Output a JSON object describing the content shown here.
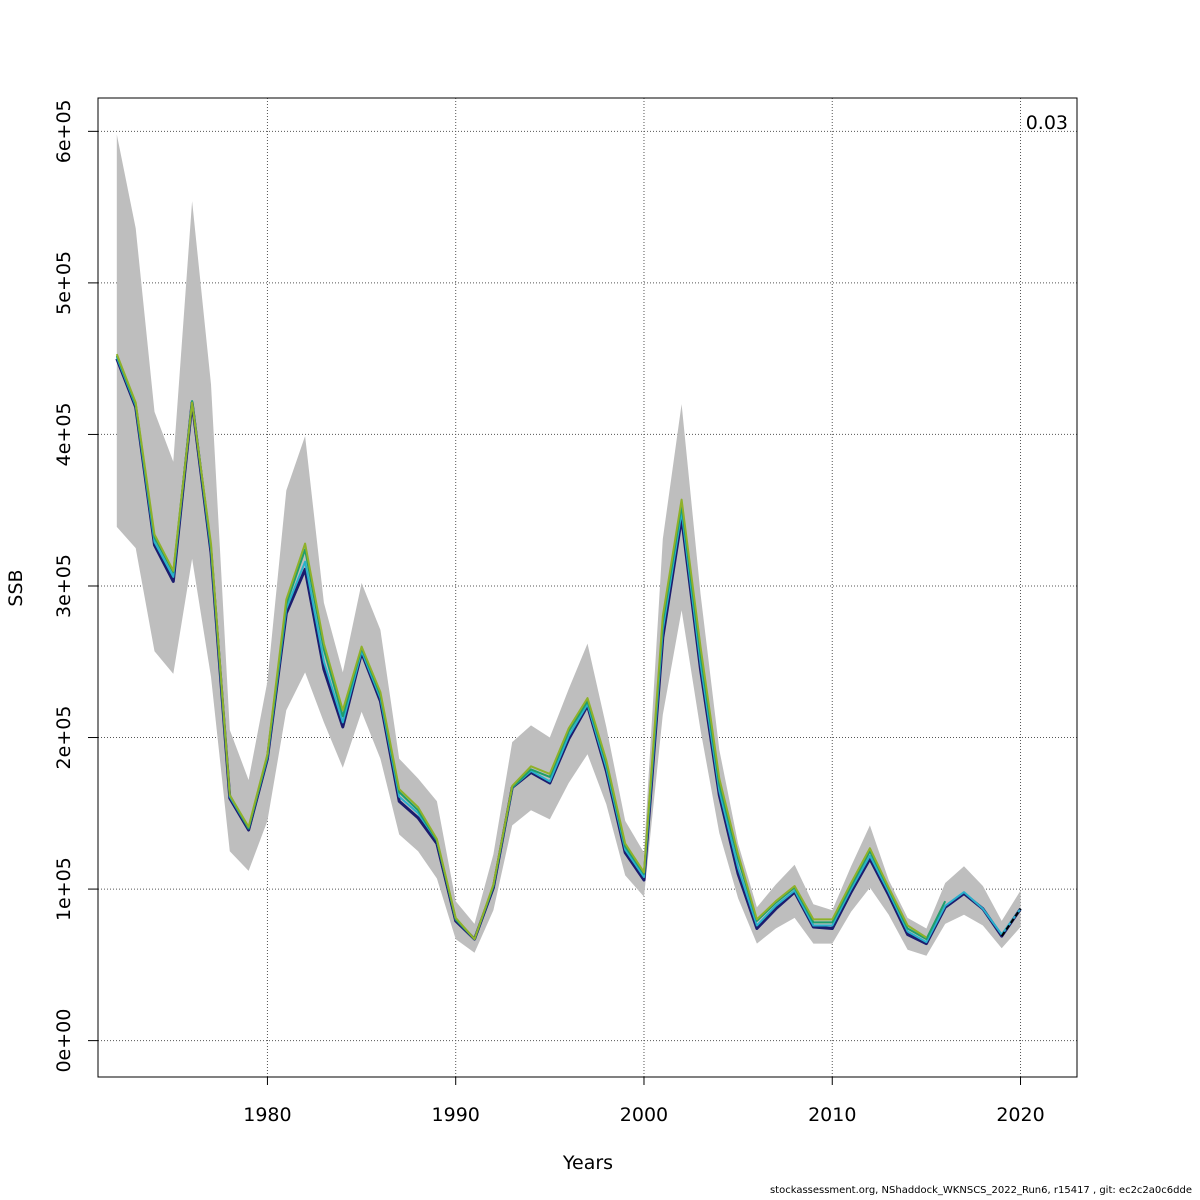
{
  "chart_data": {
    "type": "line",
    "title": "",
    "xlabel": "Years",
    "ylabel": "SSB",
    "xlim": [
      1971,
      2023
    ],
    "ylim": [
      -24000,
      622000
    ],
    "grid": true,
    "annotation": "0.03",
    "x_ticks": [
      1980,
      1990,
      2000,
      2010,
      2020
    ],
    "x_tick_labels": [
      "1980",
      "1990",
      "2000",
      "2010",
      "2020"
    ],
    "y_ticks": [
      0,
      100000,
      200000,
      300000,
      400000,
      500000,
      600000
    ],
    "y_tick_labels": [
      "0e+00",
      "1e+05",
      "2e+05",
      "3e+05",
      "4e+05",
      "5e+05",
      "6e+05"
    ],
    "band": {
      "x": [
        1972,
        1973,
        1974,
        1975,
        1976,
        1977,
        1978,
        1979,
        1980,
        1981,
        1982,
        1983,
        1984,
        1985,
        1986,
        1987,
        1988,
        1989,
        1990,
        1991,
        1992,
        1993,
        1994,
        1995,
        1996,
        1997,
        1998,
        1999,
        2000,
        2001,
        2002,
        2003,
        2004,
        2005,
        2006,
        2007,
        2008,
        2009,
        2010,
        2011,
        2012,
        2013,
        2014,
        2015,
        2016,
        2017,
        2018,
        2019,
        2020
      ],
      "lower": [
        339000,
        325000,
        257000,
        242000,
        318000,
        240000,
        125000,
        112000,
        145000,
        218000,
        243000,
        210000,
        180000,
        217000,
        186000,
        136000,
        125000,
        107000,
        67000,
        58000,
        86000,
        142000,
        152000,
        146000,
        170000,
        189000,
        156000,
        109000,
        95000,
        215000,
        284000,
        205000,
        137000,
        94000,
        64000,
        74000,
        81000,
        64000,
        64000,
        85000,
        101000,
        83000,
        60000,
        56000,
        77000,
        83000,
        76000,
        61000,
        75000
      ],
      "upper": [
        598000,
        536000,
        415000,
        382000,
        554000,
        433000,
        205000,
        172000,
        237000,
        363000,
        399000,
        289000,
        243000,
        302000,
        271000,
        186000,
        173000,
        158000,
        92000,
        77000,
        123000,
        197000,
        208000,
        200000,
        232000,
        262000,
        207000,
        145000,
        124000,
        331000,
        420000,
        295000,
        192000,
        130000,
        88000,
        103000,
        116000,
        90000,
        86000,
        115000,
        142000,
        106000,
        81000,
        74000,
        104000,
        115000,
        102000,
        79000,
        99000
      ]
    },
    "series": [
      {
        "color": "#1c1c6e",
        "x": [
          1972,
          1973,
          1974,
          1975,
          1976,
          1977,
          1978,
          1979,
          1980,
          1981,
          1982,
          1983,
          1984,
          1985,
          1986,
          1987,
          1988,
          1989,
          1990,
          1991,
          1992,
          1993,
          1994,
          1995,
          1996,
          1997,
          1998,
          1999,
          2000,
          2001,
          2002,
          2003,
          2004,
          2005,
          2006,
          2007,
          2008,
          2009,
          2010,
          2011,
          2012,
          2013,
          2014,
          2015,
          2016,
          2017,
          2018,
          2019,
          2020
        ],
        "values": [
          450000,
          418000,
          327000,
          303000,
          421000,
          322000,
          160000,
          139000,
          186000,
          282000,
          311000,
          245000,
          207000,
          256000,
          224000,
          158000,
          147000,
          130000,
          79000,
          67000,
          101000,
          167000,
          177000,
          170000,
          199000,
          221000,
          178000,
          124000,
          106000,
          266000,
          345000,
          245000,
          162000,
          110000,
          74000,
          87000,
          98000,
          75000,
          74000,
          98000,
          120000,
          96000,
          70000,
          64000,
          88000,
          97000,
          87000,
          69000,
          87000
        ]
      },
      {
        "color": "#2ab0cc",
        "x": [
          1972,
          1973,
          1974,
          1975,
          1976,
          1977,
          1978,
          1979,
          1980,
          1981,
          1982,
          1983,
          1984,
          1985,
          1986,
          1987,
          1988,
          1989,
          1990,
          1991,
          1992,
          1993,
          1994,
          1995,
          1996,
          1997,
          1998,
          1999,
          2000,
          2001,
          2002,
          2003,
          2004,
          2005,
          2006,
          2007,
          2008,
          2009,
          2010,
          2011,
          2012,
          2013,
          2014,
          2015,
          2016,
          2017,
          2018,
          2019,
          2020
        ],
        "values": [
          451000,
          419000,
          329000,
          306000,
          422000,
          324000,
          161000,
          140000,
          187000,
          285000,
          316000,
          250000,
          210000,
          257000,
          226000,
          161000,
          150000,
          132000,
          80000,
          67000,
          102000,
          167000,
          178000,
          171000,
          201000,
          222000,
          180000,
          126000,
          108000,
          271000,
          349000,
          249000,
          165000,
          114000,
          76000,
          89000,
          99000,
          76000,
          76000,
          100000,
          122000,
          98000,
          72000,
          65000,
          89000,
          98000,
          87000,
          70000,
          87000
        ]
      },
      {
        "color": "#1f9e6b",
        "x": [
          1972,
          1973,
          1974,
          1975,
          1976,
          1977,
          1978,
          1979,
          1980,
          1981,
          1982,
          1983,
          1984,
          1985,
          1986,
          1987,
          1988,
          1989,
          1990,
          1991,
          1992,
          1993,
          1994,
          1995,
          1996,
          1997,
          1998,
          1999,
          2000,
          2001,
          2002,
          2003,
          2004,
          2005,
          2006,
          2007,
          2008,
          2009,
          2010,
          2011,
          2012,
          2013,
          2014,
          2015,
          2016,
          2017,
          2018,
          2019,
          2020
        ],
        "values": [
          452000,
          420000,
          332000,
          309000,
          422000,
          326000,
          162000,
          140000,
          188000,
          288000,
          324000,
          258000,
          214000,
          259000,
          228000,
          164000,
          152000,
          132000,
          80000,
          67000,
          102000,
          167000,
          179000,
          174000,
          204000,
          224000,
          183000,
          128000,
          110000,
          276000,
          353000,
          255000,
          169000,
          120000,
          79000,
          91000,
          101000,
          78000,
          78000,
          102000,
          125000,
          100000,
          74000,
          67000,
          92000,
          null,
          null,
          null,
          null
        ]
      },
      {
        "color": "#8fb12a",
        "x": [
          1972,
          1973,
          1974,
          1975,
          1976,
          1977,
          1978,
          1979,
          1980,
          1981,
          1982,
          1983,
          1984,
          1985,
          1986,
          1987,
          1988,
          1989,
          1990,
          1991,
          1992,
          1993,
          1994,
          1995,
          1996,
          1997,
          1998,
          1999,
          2000,
          2001,
          2002,
          2003,
          2004,
          2005,
          2006,
          2007,
          2008,
          2009,
          2010,
          2011,
          2012,
          2013,
          2014,
          2015,
          2016,
          2017,
          2018,
          2019,
          2020
        ],
        "values": [
          453000,
          421000,
          334000,
          310000,
          421000,
          328000,
          162000,
          141000,
          189000,
          291000,
          328000,
          262000,
          218000,
          260000,
          230000,
          166000,
          154000,
          133000,
          81000,
          67000,
          103000,
          168000,
          181000,
          176000,
          206000,
          226000,
          185000,
          130000,
          111000,
          280000,
          357000,
          260000,
          173000,
          123000,
          80000,
          92000,
          102000,
          80000,
          80000,
          104000,
          127000,
          101000,
          76000,
          68000,
          null,
          null,
          null,
          null,
          null
        ]
      }
    ],
    "projection": {
      "color": "#000000",
      "x": [
        2019,
        2020
      ],
      "values": [
        69000,
        87000
      ]
    }
  },
  "footer": "stockassessment.org, NShaddock_WKNSCS_2022_Run6, r15417 , git: ec2c2a0c6dde"
}
